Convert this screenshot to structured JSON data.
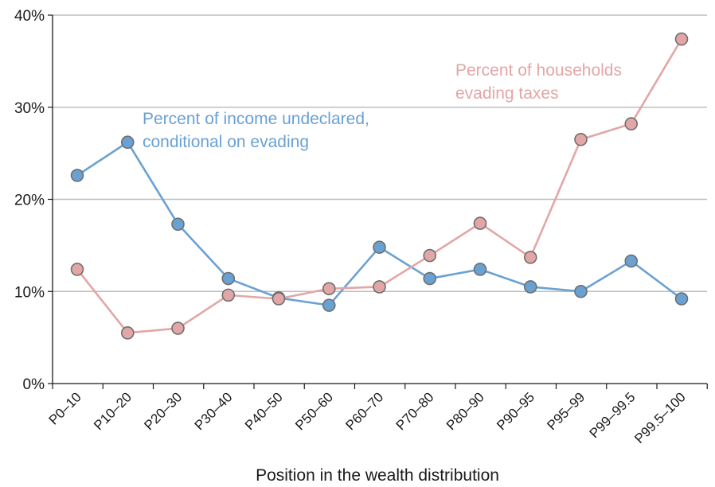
{
  "chart_data": {
    "type": "line",
    "categories": [
      "P0–10",
      "P10–20",
      "P20–30",
      "P30–40",
      "P40–50",
      "P50–60",
      "P60–70",
      "P70–80",
      "P80–90",
      "P90–95",
      "P95–99",
      "P99–99.5",
      "P99.5–100"
    ],
    "series": [
      {
        "name": "Percent of income undeclared, conditional on evading",
        "label_lines": [
          "Percent of income undeclared,",
          "conditional on evading"
        ],
        "color": "#6aa1d3",
        "values": [
          22.6,
          26.2,
          17.3,
          11.4,
          9.3,
          8.5,
          14.8,
          11.4,
          12.4,
          10.5,
          10.0,
          13.3,
          9.2
        ]
      },
      {
        "name": "Percent of households evading taxes",
        "label_lines": [
          "Percent of households",
          "evading taxes"
        ],
        "color": "#e3a6a6",
        "values": [
          12.4,
          5.5,
          6.0,
          9.6,
          9.2,
          10.3,
          10.5,
          13.9,
          17.4,
          13.7,
          26.5,
          28.2,
          37.4
        ]
      }
    ],
    "yticks": [
      "0%",
      "10%",
      "20%",
      "30%",
      "40%"
    ],
    "ylim": [
      0,
      40
    ],
    "xlabel": "Position in the wealth distribution",
    "grid": true
  }
}
